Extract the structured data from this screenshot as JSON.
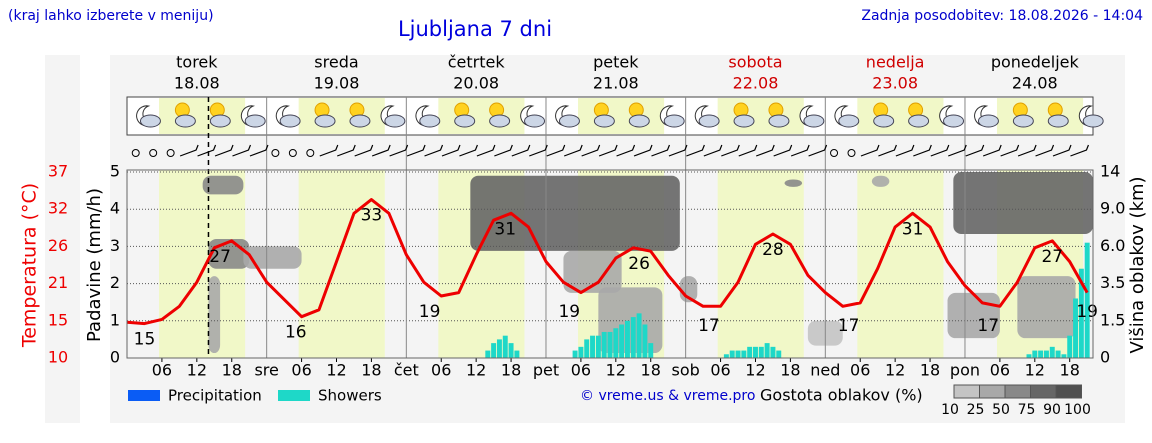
{
  "header": {
    "note": "(kraj lahko izberete v meniju)",
    "updated": "Zadnja posodobitev: 18.08.2026 - 14:04"
  },
  "chart_data": {
    "type": "meteogram",
    "title": "Ljubljana 7 dni",
    "days": [
      {
        "name": "torek",
        "date": "18.08",
        "weekend": false
      },
      {
        "name": "sreda",
        "date": "19.08",
        "weekend": false
      },
      {
        "name": "četrtek",
        "date": "20.08",
        "weekend": false
      },
      {
        "name": "petek",
        "date": "21.08",
        "weekend": false
      },
      {
        "name": "sobota",
        "date": "22.08",
        "weekend": true
      },
      {
        "name": "nedelja",
        "date": "23.08",
        "weekend": true
      },
      {
        "name": "ponedeljek",
        "date": "24.08",
        "weekend": false
      }
    ],
    "xlim": [
      0,
      166
    ],
    "xticks": [
      {
        "value": 6,
        "label": "06"
      },
      {
        "value": 12,
        "label": "12"
      },
      {
        "value": 18,
        "label": "18"
      },
      {
        "value": 24,
        "label": "sre"
      },
      {
        "value": 30,
        "label": "06"
      },
      {
        "value": 36,
        "label": "12"
      },
      {
        "value": 42,
        "label": "18"
      },
      {
        "value": 48,
        "label": "čet"
      },
      {
        "value": 54,
        "label": "06"
      },
      {
        "value": 60,
        "label": "12"
      },
      {
        "value": 66,
        "label": "18"
      },
      {
        "value": 72,
        "label": "pet"
      },
      {
        "value": 78,
        "label": "06"
      },
      {
        "value": 84,
        "label": "12"
      },
      {
        "value": 90,
        "label": "18"
      },
      {
        "value": 96,
        "label": "sob"
      },
      {
        "value": 102,
        "label": "06"
      },
      {
        "value": 108,
        "label": "12"
      },
      {
        "value": 114,
        "label": "18"
      },
      {
        "value": 120,
        "label": "ned"
      },
      {
        "value": 126,
        "label": "06"
      },
      {
        "value": 132,
        "label": "12"
      },
      {
        "value": 138,
        "label": "18"
      },
      {
        "value": 144,
        "label": "pon"
      },
      {
        "value": 150,
        "label": "06"
      },
      {
        "value": 156,
        "label": "12"
      },
      {
        "value": 162,
        "label": "18"
      }
    ],
    "ylabel": "Padavine (mm/h)",
    "ylim": [
      0,
      5
    ],
    "yticks": [
      0,
      1,
      2,
      3,
      4,
      5
    ],
    "grid": true,
    "now": 14,
    "temperature": {
      "label": "Temperatura (°C)",
      "color": "#ee0000",
      "lim": [
        10,
        37
      ],
      "ticks": [
        10,
        {
          "value": 15.4,
          "label": "15"
        },
        {
          "value": 20.8,
          "label": "21"
        },
        {
          "value": 26.2,
          "label": "26"
        },
        {
          "value": 31.6,
          "label": "32"
        },
        37
      ],
      "x": [
        0,
        3,
        6,
        9,
        12,
        15,
        18,
        21,
        24,
        27,
        30,
        33,
        36,
        39,
        42,
        45,
        48,
        51,
        54,
        57,
        60,
        63,
        66,
        69,
        72,
        75,
        78,
        81,
        84,
        87,
        90,
        93,
        96,
        99,
        102,
        105,
        108,
        111,
        114,
        117,
        120,
        123,
        126,
        129,
        132,
        135,
        138,
        141,
        144,
        147,
        150,
        153,
        156,
        159,
        162,
        165
      ],
      "values": [
        15.2,
        15,
        15.6,
        17.5,
        21,
        26,
        27,
        25,
        21,
        18.5,
        16,
        17,
        24,
        31,
        33,
        31,
        25,
        21,
        19,
        19.5,
        25,
        30,
        31,
        29,
        24,
        21,
        19.5,
        21,
        24.5,
        26,
        25.5,
        22,
        19,
        17.5,
        17.5,
        21,
        26.5,
        28,
        26.5,
        22,
        19.5,
        17.5,
        18,
        23,
        29,
        31,
        29,
        24,
        20.5,
        18,
        17.5,
        21,
        26,
        27,
        24,
        19.5
      ],
      "extremes": [
        {
          "x": 3,
          "value": 15
        },
        {
          "x": 16,
          "value": 27
        },
        {
          "x": 29,
          "value": 16
        },
        {
          "x": 42,
          "value": 33
        },
        {
          "x": 52,
          "value": 19
        },
        {
          "x": 65,
          "value": 31
        },
        {
          "x": 76,
          "value": 19
        },
        {
          "x": 88,
          "value": 26
        },
        {
          "x": 100,
          "value": 17
        },
        {
          "x": 111,
          "value": 28
        },
        {
          "x": 124,
          "value": 17
        },
        {
          "x": 135,
          "value": 31
        },
        {
          "x": 148,
          "value": 17
        },
        {
          "x": 159,
          "value": 27
        },
        {
          "x": 165,
          "value": 19
        }
      ]
    },
    "y2label": "Višina oblakov (km)",
    "y2lim": [
      0,
      14
    ],
    "y2ticks": [
      0,
      1.5,
      3.5,
      {
        "value": 6,
        "label": "6.0"
      },
      {
        "value": 9,
        "label": "9.0"
      },
      14
    ],
    "series": [
      {
        "name": "Precipitation",
        "color": "#0a5cf5",
        "x": [],
        "values": []
      },
      {
        "name": "Showers",
        "color": "#1ed8c8",
        "x": [
          62,
          63,
          64,
          65,
          66,
          67,
          77,
          78,
          79,
          80,
          81,
          82,
          83,
          84,
          85,
          86,
          87,
          88,
          89,
          90,
          103,
          104,
          105,
          106,
          107,
          108,
          109,
          110,
          111,
          112,
          155,
          156,
          157,
          158,
          159,
          160,
          161,
          162,
          163,
          164,
          165
        ],
        "values": [
          0.2,
          0.4,
          0.5,
          0.6,
          0.4,
          0.2,
          0.2,
          0.3,
          0.5,
          0.6,
          0.6,
          0.7,
          0.7,
          0.8,
          0.9,
          1.0,
          1.1,
          1.2,
          0.9,
          0.4,
          0.1,
          0.2,
          0.2,
          0.2,
          0.3,
          0.3,
          0.3,
          0.4,
          0.3,
          0.2,
          0.1,
          0.2,
          0.2,
          0.2,
          0.3,
          0.2,
          0.1,
          0.6,
          1.6,
          2.4,
          3.1
        ]
      }
    ],
    "clouds": {
      "label": "Gostota oblakov (%)",
      "levels": [
        10,
        25,
        50,
        75,
        90,
        100
      ],
      "colors": [
        "#dcdcdc",
        "#c4c4c4",
        "#a8a8a8",
        "#888888",
        "#666666",
        "#505050"
      ],
      "blocks": [
        {
          "start": 13,
          "end": 20,
          "base": 11,
          "top": 13.5,
          "density": 75
        },
        {
          "start": 14,
          "end": 21,
          "base": 4.5,
          "top": 6.6,
          "density": 75
        },
        {
          "start": 20,
          "end": 30,
          "base": 4.5,
          "top": 6,
          "density": 50
        },
        {
          "start": 14,
          "end": 16,
          "base": 0.2,
          "top": 4,
          "density": 50
        },
        {
          "start": 59,
          "end": 95,
          "base": 5.7,
          "top": 13.5,
          "density": 90
        },
        {
          "start": 75,
          "end": 85,
          "base": 3,
          "top": 5.7,
          "density": 50
        },
        {
          "start": 81,
          "end": 92,
          "base": 0.2,
          "top": 3.3,
          "density": 50
        },
        {
          "start": 95,
          "end": 98,
          "base": 2.5,
          "top": 4,
          "density": 50
        },
        {
          "start": 113,
          "end": 116,
          "base": 12,
          "top": 13,
          "density": 75
        },
        {
          "start": 117,
          "end": 123,
          "base": 0.5,
          "top": 1.5,
          "density": 25
        },
        {
          "start": 128,
          "end": 131,
          "base": 12,
          "top": 13.5,
          "density": 50
        },
        {
          "start": 142,
          "end": 166,
          "base": 7,
          "top": 14,
          "density": 90
        },
        {
          "start": 141,
          "end": 150,
          "base": 0.8,
          "top": 3,
          "density": 50
        },
        {
          "start": 153,
          "end": 163,
          "base": 0.8,
          "top": 4,
          "density": 50
        }
      ]
    },
    "credit": "© vreme.us & vreme.pro"
  }
}
